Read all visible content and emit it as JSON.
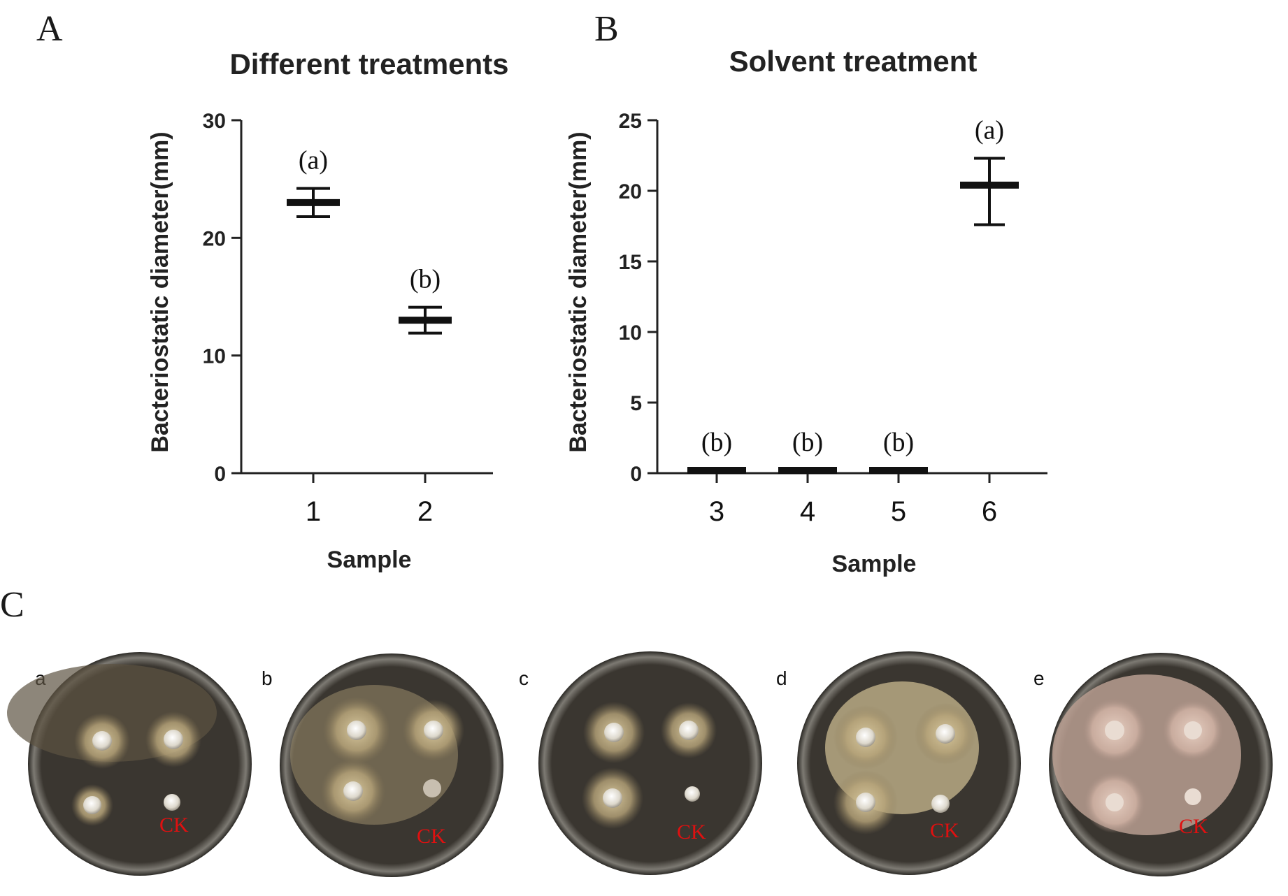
{
  "chart_data": [
    {
      "panel": "A",
      "type": "scatter",
      "title": "Different treatments",
      "xlabel": "Sample",
      "ylabel": "Bacteriostatic diameter(mm)",
      "ylim": [
        0,
        30
      ],
      "yticks": [
        0,
        10,
        20,
        30
      ],
      "categories": [
        "1",
        "2"
      ],
      "series": [
        {
          "name": "mean ± error",
          "mean": [
            23.0,
            13.0
          ],
          "low": [
            21.8,
            11.9
          ],
          "high": [
            24.2,
            14.1
          ]
        }
      ],
      "significance": [
        "(a)",
        "(b)"
      ]
    },
    {
      "panel": "B",
      "type": "scatter",
      "title": "Solvent treatment",
      "xlabel": "Sample",
      "ylabel": "Bacteriostatic diameter(mm)",
      "ylim": [
        0,
        25
      ],
      "yticks": [
        0,
        5,
        10,
        15,
        20,
        25
      ],
      "categories": [
        "3",
        "4",
        "5",
        "6"
      ],
      "series": [
        {
          "name": "mean ± error",
          "mean": [
            0.2,
            0.2,
            0.2,
            20.4
          ],
          "low": [
            0.2,
            0.2,
            0.2,
            17.6
          ],
          "high": [
            0.2,
            0.2,
            0.2,
            22.3
          ]
        }
      ],
      "significance": [
        "(b)",
        "(b)",
        "(b)",
        "(a)"
      ]
    }
  ],
  "panel_c": {
    "letter": "C",
    "plates": [
      {
        "letter": "a",
        "ck": "CK"
      },
      {
        "letter": "b",
        "ck": "CK"
      },
      {
        "letter": "c",
        "ck": "CK"
      },
      {
        "letter": "d",
        "ck": "CK"
      },
      {
        "letter": "e",
        "ck": "CK"
      }
    ]
  }
}
